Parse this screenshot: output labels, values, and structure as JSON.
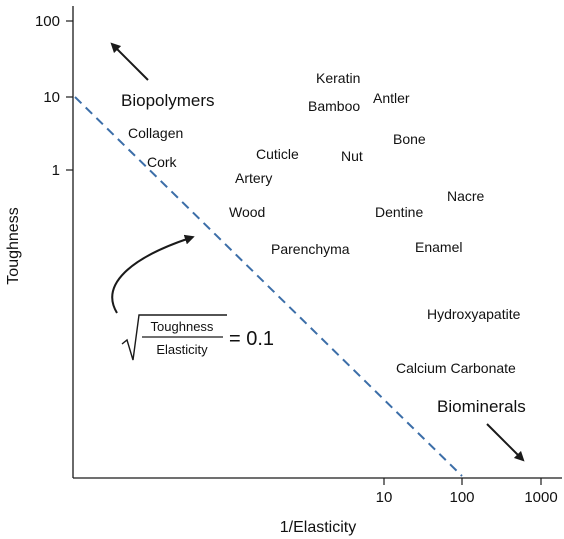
{
  "chart_data": {
    "type": "scatter",
    "title": "",
    "xlabel": "1/Elasticity",
    "ylabel": "Toughness",
    "x_scale": "log",
    "y_scale": "log",
    "x_ticks": [
      "10",
      "100",
      "1000"
    ],
    "y_ticks": [
      "100",
      "10",
      "1"
    ],
    "grid": false,
    "materials": [
      {
        "label": "Keratin"
      },
      {
        "label": "Bamboo"
      },
      {
        "label": "Antler"
      },
      {
        "label": "Collagen"
      },
      {
        "label": "Bone"
      },
      {
        "label": "Cuticle"
      },
      {
        "label": "Nut"
      },
      {
        "label": "Cork"
      },
      {
        "label": "Artery"
      },
      {
        "label": "Nacre"
      },
      {
        "label": "Wood"
      },
      {
        "label": "Dentine"
      },
      {
        "label": "Parenchyma"
      },
      {
        "label": "Enamel"
      },
      {
        "label": "Hydroxyapatite"
      },
      {
        "label": "Calcium Carbonate"
      }
    ],
    "regions": [
      {
        "label": "Biopolymers"
      },
      {
        "label": "Biominerals"
      }
    ],
    "guideline": {
      "style": "dashed",
      "color": "#3c6ea8",
      "x_range": [
        "",
        "100"
      ],
      "y_range": [
        "10",
        ""
      ]
    },
    "formula": {
      "numerator": "Toughness",
      "denominator": "Elasticity",
      "rhs": "= 0.1"
    }
  }
}
